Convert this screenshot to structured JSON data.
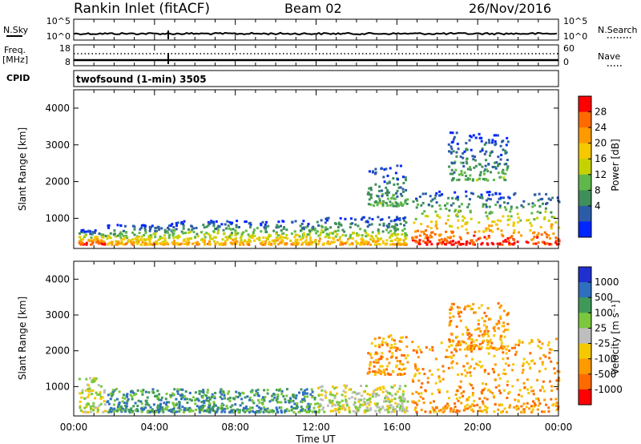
{
  "header": {
    "station": "Rankin Inlet (fitACF)",
    "beam": "Beam 02",
    "date": "26/Nov/2016"
  },
  "status_panels": {
    "nsky_label": "N.Sky",
    "nsky_ticks": [
      "10^5",
      "10^0"
    ],
    "nsearch_label": "N.Search",
    "nsearch_ticks": [
      "10^5",
      "10^0"
    ],
    "freq_label_1": "Freq.",
    "freq_label_2": "[MHz]",
    "freq_ticks": [
      "18",
      "8"
    ],
    "nave_label": "Nave",
    "nave_ticks": [
      "60",
      "0"
    ],
    "cpid_label": "CPID",
    "cpid_text": "twofsound (1-min) 3505"
  },
  "chart_data": [
    {
      "type": "heatmap",
      "panel": "power",
      "ylabel": "Slant Range [km]",
      "y_ticks": [
        1000,
        2000,
        3000,
        4000
      ],
      "ylim": [
        180,
        4500
      ],
      "x_ticks": [
        "00:00",
        "04:00",
        "08:00",
        "12:00",
        "16:00",
        "20:00",
        "00:00"
      ],
      "xlim_hours": [
        0,
        24
      ],
      "colorbar": {
        "label": "Power [dB]",
        "ticks": [
          "28",
          "24",
          "20",
          "16",
          "12",
          "8",
          "4"
        ],
        "colors": [
          "#ff0000",
          "#ff6a00",
          "#ff9a00",
          "#f5c800",
          "#c6d200",
          "#60b84a",
          "#3f8f5a",
          "#2c5ca8",
          "#0026ff"
        ]
      },
      "regions": [
        {
          "t": [
            0.2,
            1.6
          ],
          "range": [
            250,
            650
          ],
          "level": "high"
        },
        {
          "t": [
            1.6,
            4.8
          ],
          "range": [
            250,
            800
          ],
          "level": "mid"
        },
        {
          "t": [
            4.8,
            12.0
          ],
          "range": [
            250,
            900
          ],
          "level": "mid"
        },
        {
          "t": [
            12.0,
            16.5
          ],
          "range": [
            250,
            1000
          ],
          "level": "mid"
        },
        {
          "t": [
            16.7,
            24.0
          ],
          "range": [
            250,
            1700
          ],
          "level": "high"
        },
        {
          "t": [
            14.5,
            16.5
          ],
          "range": [
            1300,
            2400
          ],
          "level": "low"
        },
        {
          "t": [
            18.5,
            21.5
          ],
          "range": [
            2000,
            3300
          ],
          "level": "low"
        }
      ]
    },
    {
      "type": "heatmap",
      "panel": "velocity",
      "ylabel": "Slant Range [km]",
      "y_ticks": [
        1000,
        2000,
        3000,
        4000
      ],
      "ylim": [
        180,
        4500
      ],
      "x_ticks": [
        "00:00",
        "04:00",
        "08:00",
        "12:00",
        "16:00",
        "20:00",
        "00:00"
      ],
      "xlabel": "Time UT",
      "xlim_hours": [
        0,
        24
      ],
      "colorbar": {
        "label": "Velocity [m s⁻¹]",
        "ticks": [
          "1000",
          "500",
          "100",
          "25",
          "-25",
          "-100",
          "-500",
          "-1000"
        ],
        "colors": [
          "#2030d0",
          "#2f6fbf",
          "#3f9a5a",
          "#7bc83c",
          "#bebebe",
          "#f5c800",
          "#ff9a00",
          "#ff6a00",
          "#ff0000"
        ]
      },
      "regions": [
        {
          "t": [
            0.2,
            1.6
          ],
          "range": [
            250,
            1200
          ],
          "level": "gray-green"
        },
        {
          "t": [
            1.6,
            12.0
          ],
          "range": [
            250,
            900
          ],
          "level": "green"
        },
        {
          "t": [
            12.0,
            16.5
          ],
          "range": [
            250,
            1000
          ],
          "level": "mixed"
        },
        {
          "t": [
            16.7,
            24.0
          ],
          "range": [
            250,
            2300
          ],
          "level": "orange"
        },
        {
          "t": [
            14.5,
            16.5
          ],
          "range": [
            1300,
            2400
          ],
          "level": "orange"
        },
        {
          "t": [
            18.5,
            21.5
          ],
          "range": [
            2000,
            3300
          ],
          "level": "orange"
        }
      ]
    }
  ]
}
